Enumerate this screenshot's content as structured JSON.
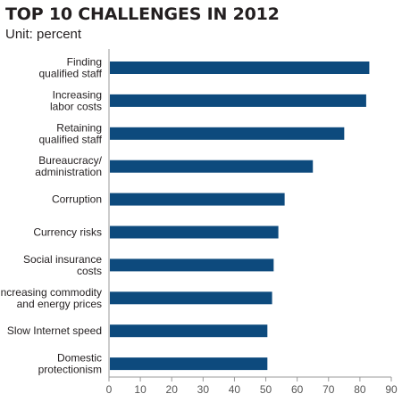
{
  "chart_data": {
    "type": "bar",
    "orientation": "horizontal",
    "title": "TOP 10 CHALLENGES IN 2012",
    "subtitle": "Unit: percent",
    "categories": [
      [
        "Finding",
        "qualified staff"
      ],
      [
        "Increasing",
        "labor costs"
      ],
      [
        "Retaining",
        "qualified staff"
      ],
      [
        "Bureaucracy/",
        "administration"
      ],
      [
        "Corruption"
      ],
      [
        "Currency risks"
      ],
      [
        "Social insurance",
        "costs"
      ],
      [
        "Increasing commodity",
        "and energy prices"
      ],
      [
        "Slow Internet speed"
      ],
      [
        "Domestic",
        "protectionism"
      ]
    ],
    "values": [
      83,
      82,
      75,
      65,
      56,
      54,
      52.5,
      52,
      50.5,
      50.5
    ],
    "xlim": [
      0,
      90
    ],
    "xticks": [
      0,
      10,
      20,
      30,
      40,
      50,
      60,
      70,
      80,
      90
    ],
    "bar_color": "#0d4a7d",
    "grid": false,
    "legend": "none"
  }
}
